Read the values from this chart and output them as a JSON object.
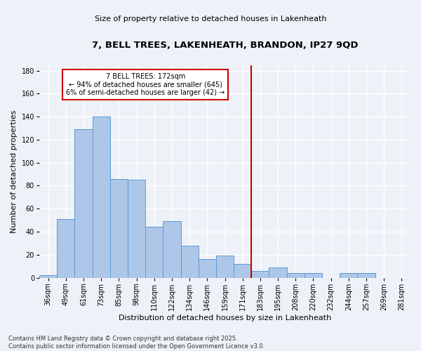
{
  "title": "7, BELL TREES, LAKENHEATH, BRANDON, IP27 9QD",
  "subtitle": "Size of property relative to detached houses in Lakenheath",
  "xlabel": "Distribution of detached houses by size in Lakenheath",
  "ylabel": "Number of detached properties",
  "categories": [
    "36sqm",
    "49sqm",
    "61sqm",
    "73sqm",
    "85sqm",
    "98sqm",
    "110sqm",
    "122sqm",
    "134sqm",
    "146sqm",
    "159sqm",
    "171sqm",
    "183sqm",
    "195sqm",
    "208sqm",
    "220sqm",
    "232sqm",
    "244sqm",
    "257sqm",
    "269sqm",
    "281sqm"
  ],
  "values": [
    2,
    51,
    129,
    140,
    86,
    85,
    44,
    49,
    28,
    16,
    19,
    12,
    6,
    9,
    4,
    4,
    0,
    4,
    4,
    0,
    0
  ],
  "bar_color": "#aec6e8",
  "bar_edge_color": "#5b9bd5",
  "vline_bin": 11,
  "vline_color": "#cc0000",
  "annotation_title": "7 BELL TREES: 172sqm",
  "annotation_line1": "← 94% of detached houses are smaller (645)",
  "annotation_line2": "6% of semi-detached houses are larger (42) →",
  "annotation_box_color": "#cc0000",
  "ylim": [
    0,
    185
  ],
  "yticks": [
    0,
    20,
    40,
    60,
    80,
    100,
    120,
    140,
    160,
    180
  ],
  "footer1": "Contains HM Land Registry data © Crown copyright and database right 2025.",
  "footer2": "Contains public sector information licensed under the Open Government Licence v3.0.",
  "background_color": "#eef2f8",
  "grid_color": "#ffffff",
  "title_fontsize": 9.5,
  "subtitle_fontsize": 8,
  "ylabel_fontsize": 8,
  "xlabel_fontsize": 8,
  "tick_fontsize": 7,
  "footer_fontsize": 6,
  "ann_fontsize": 7
}
